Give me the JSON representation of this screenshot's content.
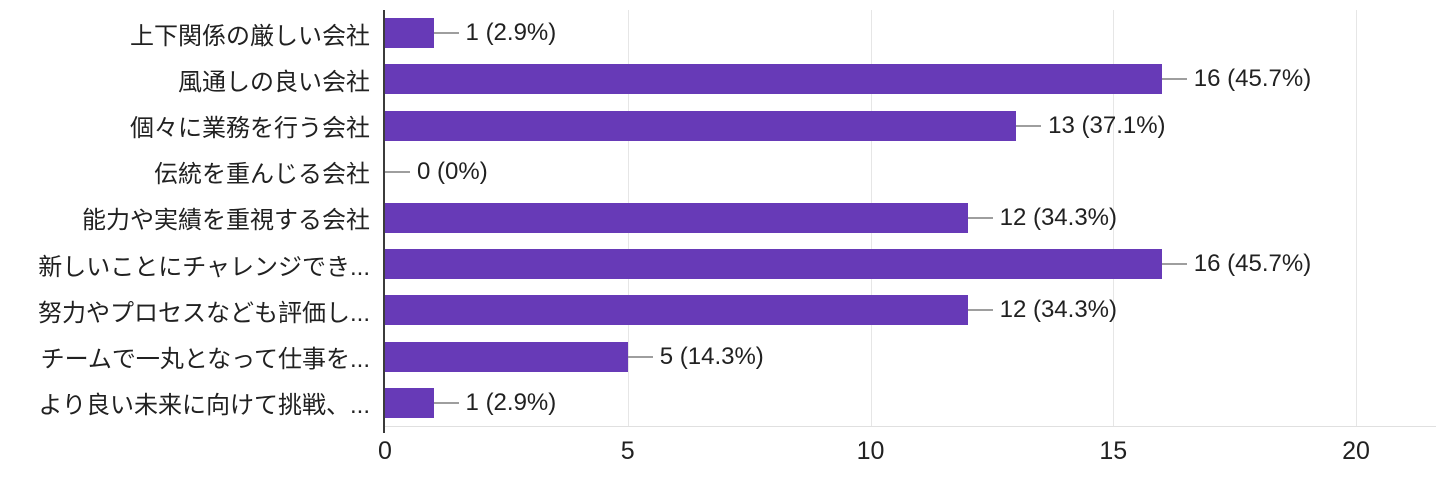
{
  "chart_data": {
    "type": "bar",
    "orientation": "horizontal",
    "title": "",
    "xlabel": "",
    "ylabel": "",
    "xlim": [
      0,
      20
    ],
    "x_ticks": [
      0,
      5,
      10,
      15,
      20
    ],
    "grid": true,
    "bar_color": "#673ab7",
    "categories": [
      "上下関係の厳しい会社",
      "風通しの良い会社",
      "個々に業務を行う会社",
      "伝統を重んじる会社",
      "能力や実績を重視する会社",
      "新しいことにチャレンジでき...",
      "努力やプロセスなども評価し...",
      "チームで一丸となって仕事を...",
      "より良い未来に向けて挑戦、..."
    ],
    "values": [
      1,
      16,
      13,
      0,
      12,
      16,
      12,
      5,
      1
    ],
    "value_labels": [
      "1 (2.9%)",
      "16 (45.7%)",
      "13 (37.1%)",
      "0 (0%)",
      "12 (34.3%)",
      "16 (45.7%)",
      "12 (34.3%)",
      "5 (14.3%)",
      "1 (2.9%)"
    ]
  },
  "colors": {
    "bar": "#673ab7",
    "connector": "#9e9e9e",
    "gridline": "#e6e6e6",
    "axis_line": "#3b3b3b",
    "text": "#212121",
    "background": "#ffffff"
  }
}
